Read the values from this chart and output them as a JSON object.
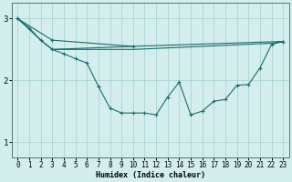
{
  "bg_color": "#d4eeee",
  "grid_color": "#b0d8d8",
  "line_color": "#1a6b6b",
  "xlabel": "Humidex (Indice chaleur)",
  "xlim": [
    -0.5,
    23.5
  ],
  "ylim": [
    0.75,
    3.25
  ],
  "yticks": [
    1,
    2,
    3
  ],
  "xticks": [
    0,
    1,
    2,
    3,
    4,
    5,
    6,
    7,
    8,
    9,
    10,
    11,
    12,
    13,
    14,
    15,
    16,
    17,
    18,
    19,
    20,
    21,
    22,
    23
  ],
  "series": [
    {
      "x": [
        0,
        1,
        2,
        3,
        4,
        5,
        6,
        7,
        8,
        9,
        10,
        11,
        12,
        13,
        14,
        15,
        16,
        17,
        18,
        19,
        20,
        21,
        22,
        23
      ],
      "y": [
        3.0,
        2.85,
        2.65,
        2.5,
        2.43,
        2.35,
        2.28,
        1.9,
        1.55,
        1.47,
        1.47,
        1.47,
        1.44,
        1.73,
        1.97,
        1.44,
        1.5,
        1.66,
        1.69,
        1.92,
        1.93,
        2.2,
        2.58,
        2.63
      ],
      "marker": "+"
    },
    {
      "x": [
        0,
        3,
        10,
        23
      ],
      "y": [
        3.0,
        2.65,
        2.55,
        2.63
      ],
      "marker": "+"
    },
    {
      "x": [
        3,
        10
      ],
      "y": [
        2.5,
        2.55
      ],
      "marker": null
    },
    {
      "x": [
        0,
        2,
        3,
        10,
        22,
        23
      ],
      "y": [
        3.0,
        2.65,
        2.5,
        2.5,
        2.6,
        2.63
      ],
      "marker": null
    }
  ],
  "figsize": [
    3.2,
    2.0
  ],
  "dpi": 100
}
